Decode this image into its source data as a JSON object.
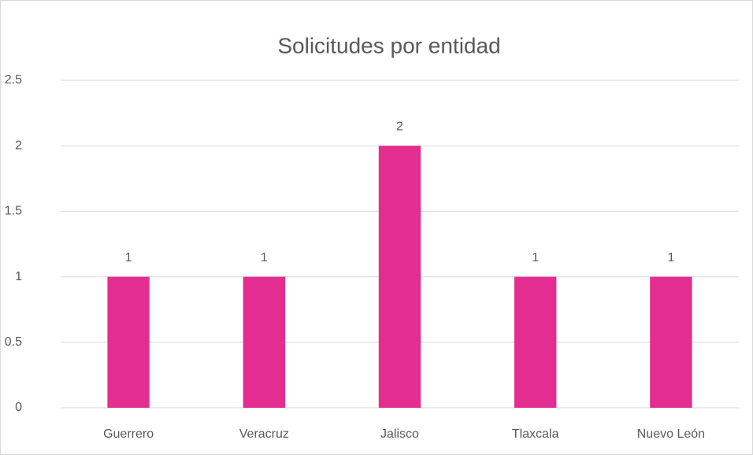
{
  "chart_data": {
    "type": "bar",
    "title": "Solicitudes por entidad",
    "categories": [
      "Guerrero",
      "Veracruz",
      "Jalisco",
      "Tlaxcala",
      "Nuevo León"
    ],
    "values": [
      1,
      1,
      2,
      1,
      1
    ],
    "color": "#e32d91",
    "ylim": [
      0,
      2.5
    ],
    "yticks": [
      0,
      0.5,
      1,
      1.5,
      2,
      2.5
    ],
    "grid": true
  }
}
